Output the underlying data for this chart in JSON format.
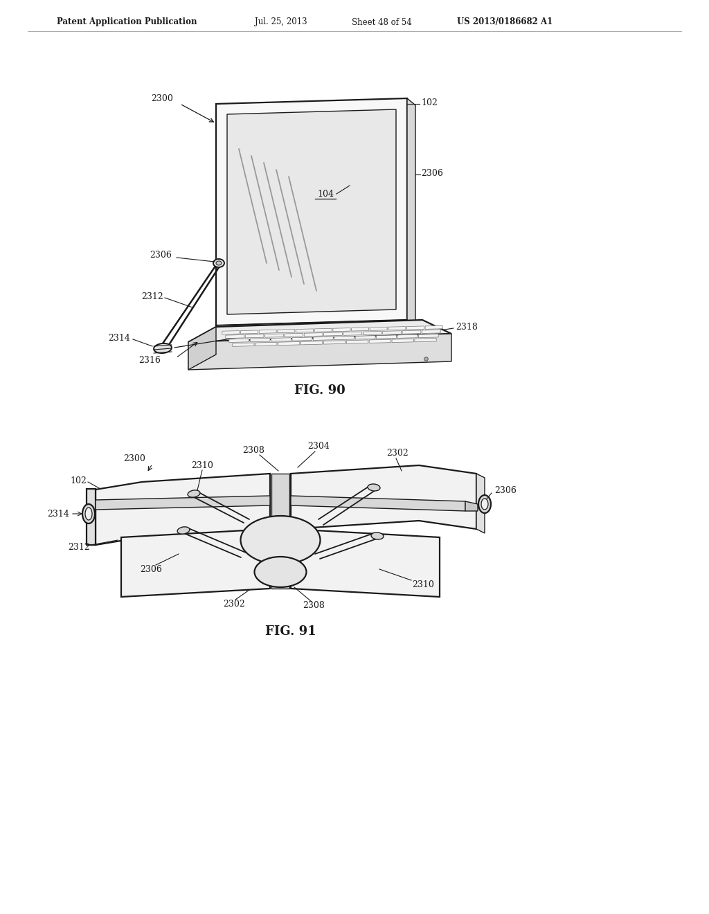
{
  "background_color": "#ffffff",
  "header_text": "Patent Application Publication",
  "header_date": "Jul. 25, 2013",
  "header_sheet": "Sheet 48 of 54",
  "header_patent": "US 2013/0186682 A1",
  "fig90_caption": "FIG. 90",
  "fig91_caption": "FIG. 91",
  "line_color": "#1a1a1a",
  "text_color": "#1a1a1a",
  "label_fontsize": 9,
  "caption_fontsize": 13,
  "header_fontsize": 8.5
}
